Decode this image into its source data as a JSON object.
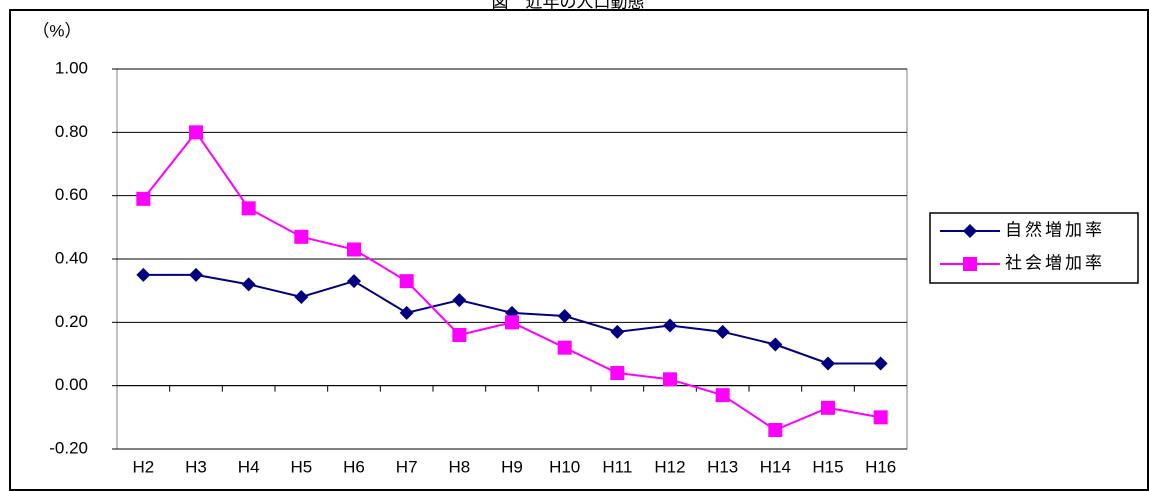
{
  "chart_data": {
    "type": "line",
    "title": "図　近年の人口動態",
    "y_label": "（%）",
    "categories": [
      "H2",
      "H3",
      "H4",
      "H5",
      "H6",
      "H7",
      "H8",
      "H9",
      "H10",
      "H11",
      "H12",
      "H13",
      "H14",
      "H15",
      "H16"
    ],
    "series": [
      {
        "name": "自然増加率",
        "color": "#000080",
        "marker": "diamond",
        "values": [
          0.35,
          0.35,
          0.32,
          0.28,
          0.33,
          0.23,
          0.27,
          0.23,
          0.22,
          0.17,
          0.19,
          0.17,
          0.13,
          0.07,
          0.07
        ]
      },
      {
        "name": "社会増加率",
        "color": "#ff00ff",
        "marker": "square",
        "values": [
          0.59,
          0.8,
          0.56,
          0.47,
          0.43,
          0.33,
          0.16,
          0.2,
          0.12,
          0.04,
          0.02,
          -0.03,
          -0.14,
          -0.07,
          -0.1
        ]
      }
    ],
    "ylim": [
      -0.2,
      1.0
    ],
    "yticks": [
      {
        "value": -0.2,
        "label": "-0.20"
      },
      {
        "value": 0,
        "label": "0.00"
      },
      {
        "value": 0.2,
        "label": "0.20"
      },
      {
        "value": 0.4,
        "label": "0.40"
      },
      {
        "value": 0.6,
        "label": "0.60"
      },
      {
        "value": 0.8,
        "label": "0.80"
      },
      {
        "value": 1.0,
        "label": "1.00"
      }
    ],
    "grid": true,
    "legend": "right"
  }
}
